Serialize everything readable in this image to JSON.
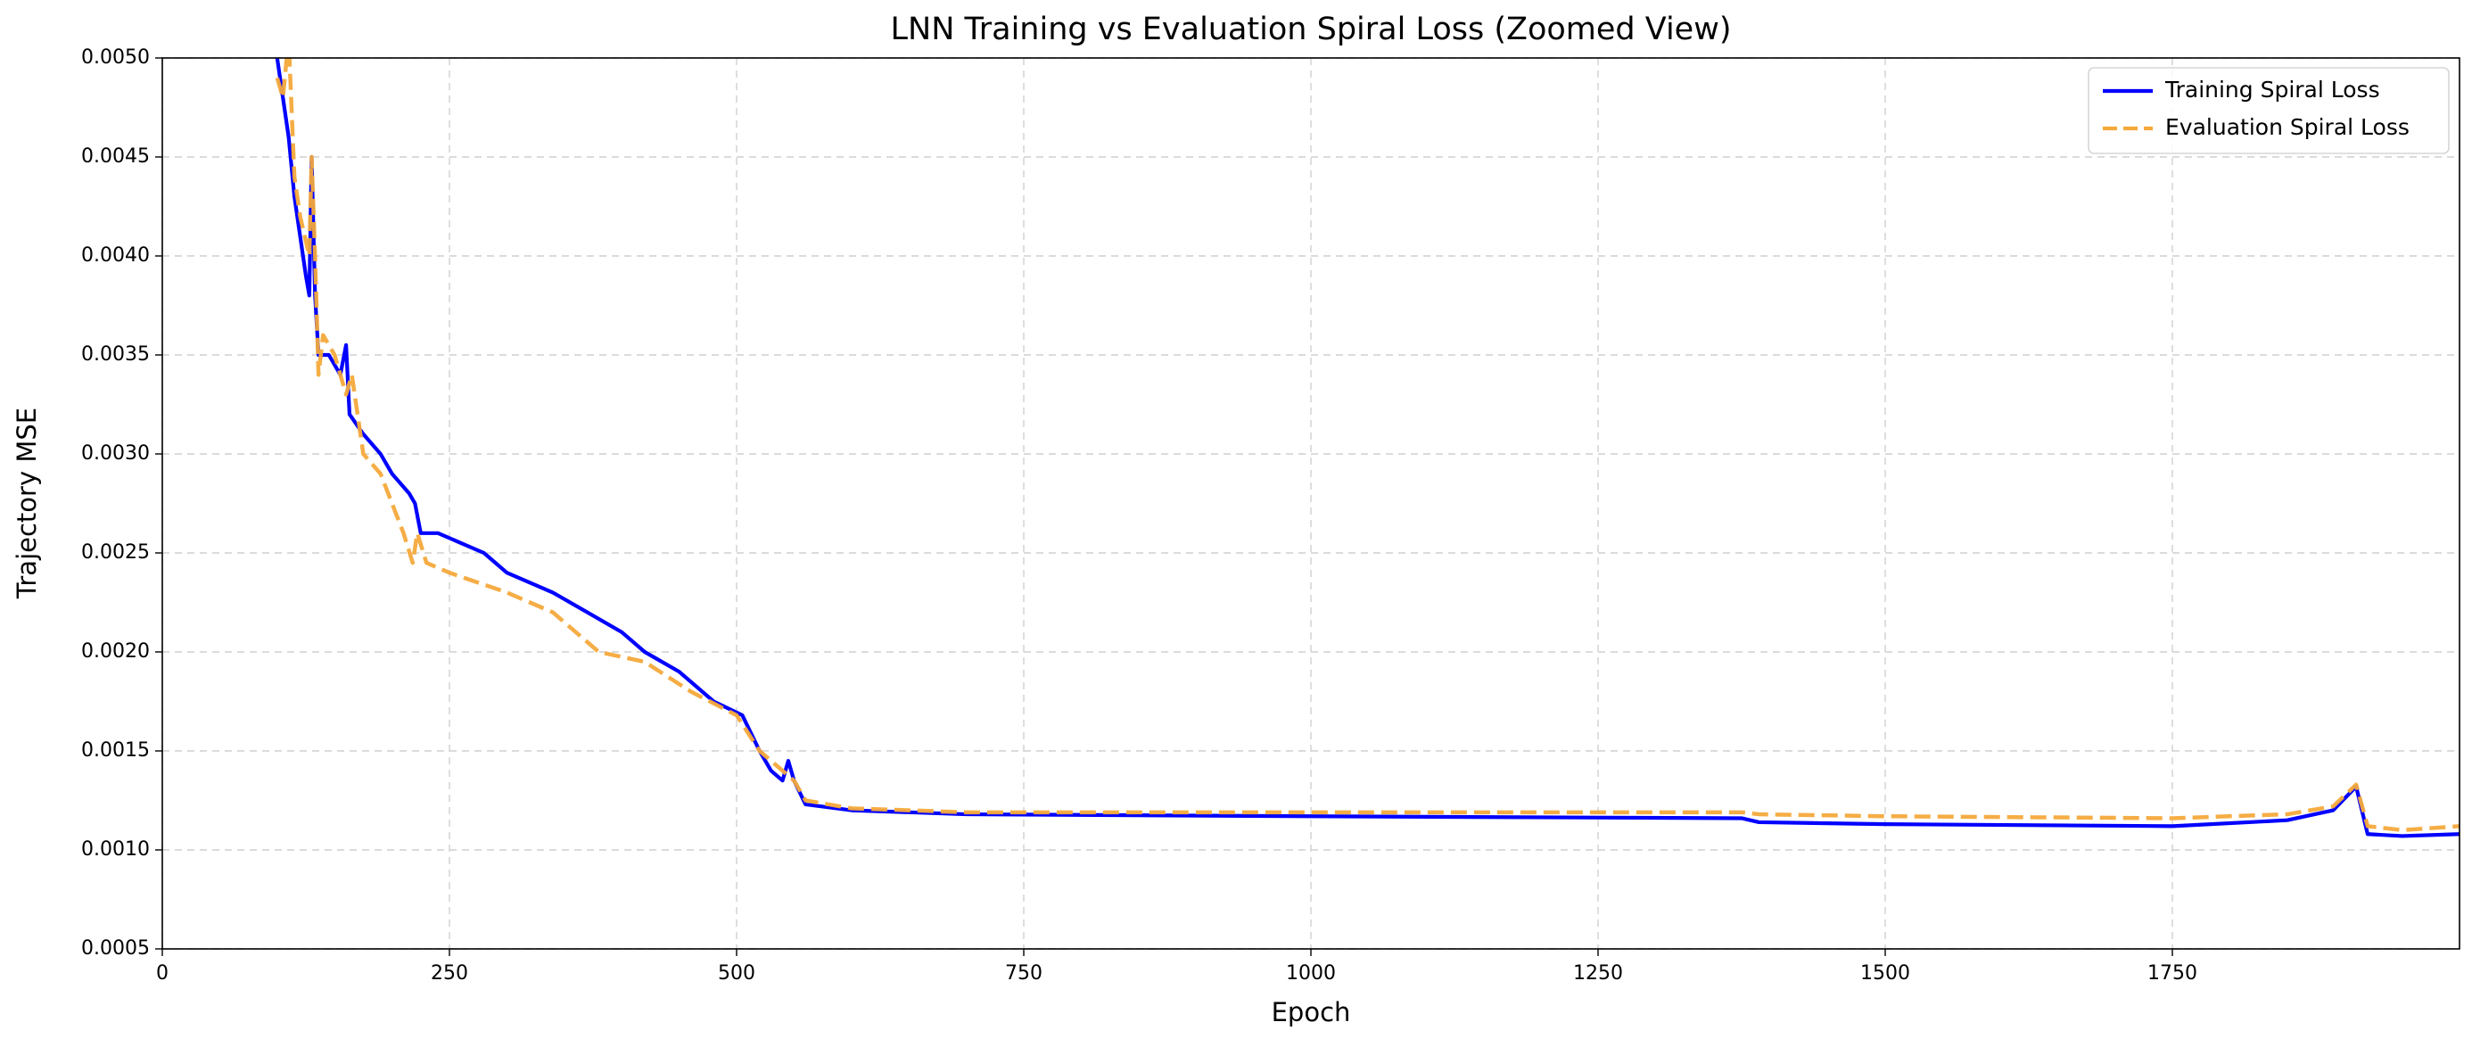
{
  "chart_data": {
    "type": "line",
    "title": "LNN Training vs Evaluation Spiral Loss (Zoomed View)",
    "x_label": "Epoch",
    "y_label": "Trajectory MSE",
    "xlim": [
      0,
      2000
    ],
    "ylim": [
      0.0005,
      0.005
    ],
    "xticks": [
      0,
      250,
      500,
      750,
      1000,
      1250,
      1500,
      1750
    ],
    "yticks": [
      0.0005,
      {
        "value": 0.001,
        "label": "0.0010"
      },
      0.0015,
      {
        "value": 0.002,
        "label": "0.0020"
      },
      0.0025,
      {
        "value": 0.003,
        "label": "0.0030"
      },
      0.0035,
      {
        "value": 0.004,
        "label": "0.0040"
      },
      0.0045,
      {
        "value": 0.005,
        "label": "0.0050"
      }
    ],
    "grid": true,
    "legend": "upper right",
    "series": [
      {
        "name": "Training Spiral Loss",
        "color": "#0000ff",
        "dash": false,
        "x": [
          95,
          100,
          105,
          110,
          115,
          120,
          125,
          128,
          130,
          133,
          136,
          145,
          155,
          160,
          163,
          175,
          190,
          200,
          215,
          220,
          225,
          240,
          260,
          280,
          300,
          340,
          370,
          400,
          420,
          450,
          480,
          505,
          520,
          530,
          540,
          545,
          550,
          560,
          600,
          700,
          1000,
          1375,
          1390,
          1500,
          1750,
          1850,
          1890,
          1910,
          1920,
          1950,
          2000
        ],
        "values": [
          0.0053,
          0.005,
          0.0048,
          0.0046,
          0.0043,
          0.0041,
          0.0039,
          0.0038,
          0.0045,
          0.0038,
          0.0035,
          0.0035,
          0.0034,
          0.00355,
          0.0032,
          0.0031,
          0.003,
          0.0029,
          0.0028,
          0.00275,
          0.0026,
          0.0026,
          0.00255,
          0.0025,
          0.0024,
          0.0023,
          0.0022,
          0.0021,
          0.002,
          0.0019,
          0.00175,
          0.00168,
          0.0015,
          0.0014,
          0.00135,
          0.00145,
          0.00135,
          0.00123,
          0.0012,
          0.00118,
          0.00117,
          0.00116,
          0.00114,
          0.00113,
          0.00112,
          0.00115,
          0.0012,
          0.00132,
          0.00108,
          0.00107,
          0.00108
        ]
      },
      {
        "name": "Evaluation Spiral Loss",
        "color": "#f4a93b",
        "dash": true,
        "x": [
          100,
          105,
          110,
          115,
          120,
          128,
          130,
          133,
          136,
          140,
          150,
          160,
          165,
          175,
          190,
          210,
          218,
          222,
          230,
          250,
          300,
          340,
          380,
          420,
          460,
          500,
          520,
          540,
          550,
          560,
          600,
          700,
          1000,
          1375,
          1390,
          1500,
          1750,
          1850,
          1890,
          1910,
          1920,
          1950,
          2000
        ],
        "values": [
          0.0049,
          0.0048,
          0.0051,
          0.0044,
          0.0042,
          0.004,
          0.0045,
          0.004,
          0.0034,
          0.0036,
          0.0035,
          0.0033,
          0.0034,
          0.003,
          0.0029,
          0.0026,
          0.00245,
          0.0026,
          0.00245,
          0.0024,
          0.0023,
          0.0022,
          0.002,
          0.00195,
          0.0018,
          0.00168,
          0.0015,
          0.0014,
          0.00135,
          0.00125,
          0.00121,
          0.00119,
          0.00119,
          0.00119,
          0.00118,
          0.00117,
          0.00116,
          0.00118,
          0.00122,
          0.00133,
          0.00112,
          0.0011,
          0.00112
        ]
      }
    ]
  }
}
